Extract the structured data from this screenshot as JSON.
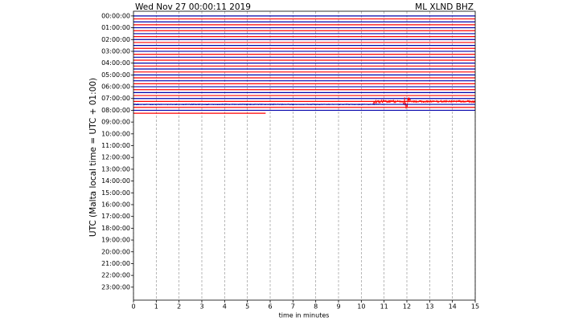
{
  "chart_data": {
    "type": "helicorder",
    "title": "Wed Nov 27 00:00:11 2019",
    "station": "ML XLND BHZ",
    "y_label": "UTC (Malta local time = UTC + 01:00)",
    "x_label": "time in minutes",
    "xlim": [
      0,
      15
    ],
    "xticks": [
      0,
      1,
      2,
      3,
      4,
      5,
      6,
      7,
      8,
      9,
      10,
      11,
      12,
      13,
      14,
      15
    ],
    "ylim": [
      -0.4,
      24.1
    ],
    "y_inverted": true,
    "yticks": [
      {
        "value": 0,
        "label": "00:00:00"
      },
      {
        "value": 1,
        "label": "01:00:00"
      },
      {
        "value": 2,
        "label": "02:00:00"
      },
      {
        "value": 3,
        "label": "03:00:00"
      },
      {
        "value": 4,
        "label": "04:00:00"
      },
      {
        "value": 5,
        "label": "05:00:00"
      },
      {
        "value": 6,
        "label": "06:00:00"
      },
      {
        "value": 7,
        "label": "07:00:00"
      },
      {
        "value": 8,
        "label": "08:00:00"
      },
      {
        "value": 9,
        "label": "09:00:00"
      },
      {
        "value": 10,
        "label": "10:00:00"
      },
      {
        "value": 11,
        "label": "11:00:00"
      },
      {
        "value": 12,
        "label": "12:00:00"
      },
      {
        "value": 13,
        "label": "13:00:00"
      },
      {
        "value": 14,
        "label": "14:00:00"
      },
      {
        "value": 15,
        "label": "15:00:00"
      },
      {
        "value": 16,
        "label": "16:00:00"
      },
      {
        "value": 17,
        "label": "17:00:00"
      },
      {
        "value": 18,
        "label": "18:00:00"
      },
      {
        "value": 19,
        "label": "19:00:00"
      },
      {
        "value": 20,
        "label": "20:00:00"
      },
      {
        "value": 21,
        "label": "21:00:00"
      },
      {
        "value": 22,
        "label": "22:00:00"
      },
      {
        "value": 23,
        "label": "23:00:00"
      }
    ],
    "row_hours": 0.25,
    "row_ends": [
      15,
      15,
      15,
      15,
      15,
      15,
      15,
      15,
      15,
      15,
      15,
      15,
      15,
      15,
      15,
      15,
      15,
      15,
      15,
      15,
      15,
      15,
      15,
      15,
      15,
      15,
      15,
      15,
      15,
      15,
      15,
      15,
      15,
      5.8
    ],
    "colors": [
      "#0000aa",
      "#ff0000"
    ],
    "grid": true
  }
}
